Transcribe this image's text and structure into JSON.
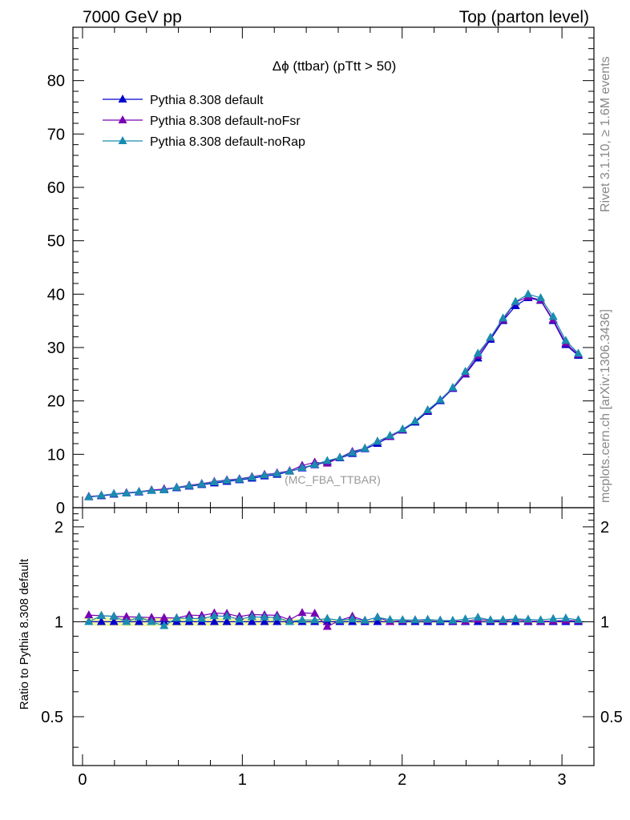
{
  "header": {
    "energy_label": "7000 GeV pp",
    "process_label": "Top (parton level)"
  },
  "side_labels": {
    "rivet": "Rivet 3.1.10, ≥ 1.6M events",
    "mcplots": "mcplots.cern.ch [arXiv:1306.3436]"
  },
  "chart_data": {
    "type": "line",
    "title": "Δϕ (ttbar) (pTtt > 50)",
    "analysis_tag": "(MC_FBA_TTBAR)",
    "colors": {
      "Pythia 8.308 default": "#0000cc",
      "Pythia 8.308 default-noFsr": "#7a00b4",
      "Pythia 8.308 default-noRap": "#1a8cb0",
      "band": "#f2f7a0"
    },
    "x": [
      0.0393,
      0.1178,
      0.1963,
      0.2749,
      0.3534,
      0.432,
      0.5105,
      0.589,
      0.6676,
      0.7461,
      0.8247,
      0.9032,
      0.9817,
      1.0603,
      1.1388,
      1.2174,
      1.2959,
      1.3744,
      1.453,
      1.5315,
      1.6101,
      1.6886,
      1.7671,
      1.8457,
      1.9242,
      2.0028,
      2.0813,
      2.1598,
      2.2384,
      2.3169,
      2.3955,
      2.474,
      2.5525,
      2.6311,
      2.7096,
      2.7882,
      2.8667,
      2.9452,
      3.0238,
      3.1023
    ],
    "series": [
      {
        "name": "Pythia 8.308 default",
        "values": [
          2.0,
          2.2,
          2.5,
          2.7,
          2.9,
          3.2,
          3.4,
          3.7,
          4.0,
          4.3,
          4.6,
          4.9,
          5.2,
          5.5,
          5.9,
          6.2,
          6.8,
          7.4,
          8.0,
          8.6,
          9.3,
          10.1,
          11.0,
          12.0,
          13.3,
          14.5,
          16.0,
          18.0,
          20.0,
          22.3,
          25.0,
          28.0,
          31.5,
          35.0,
          37.8,
          39.3,
          38.8,
          35.0,
          30.5,
          28.5
        ]
      },
      {
        "name": "Pythia 8.308 default-noFsr",
        "values": [
          2.1,
          2.3,
          2.6,
          2.8,
          3.0,
          3.3,
          3.5,
          3.8,
          4.2,
          4.5,
          4.9,
          5.2,
          5.4,
          5.8,
          6.2,
          6.5,
          6.9,
          7.9,
          8.5,
          8.3,
          9.4,
          10.5,
          11.1,
          12.4,
          13.3,
          14.6,
          16.2,
          18.2,
          20.2,
          22.4,
          25.1,
          28.5,
          31.8,
          35.2,
          38.5,
          39.5,
          38.9,
          35.2,
          30.8,
          28.7
        ]
      },
      {
        "name": "Pythia 8.308 default-noRap",
        "values": [
          2.0,
          2.3,
          2.6,
          2.7,
          3.0,
          3.2,
          3.3,
          3.8,
          4.1,
          4.4,
          4.8,
          5.1,
          5.3,
          5.7,
          6.1,
          6.4,
          6.8,
          7.5,
          8.1,
          8.8,
          9.4,
          10.3,
          11.1,
          12.4,
          13.5,
          14.7,
          16.2,
          18.3,
          20.2,
          22.5,
          25.5,
          28.9,
          31.9,
          35.5,
          38.6,
          40.0,
          39.3,
          35.8,
          31.3,
          28.9
        ]
      }
    ],
    "band_halfwidth": [
      0.03,
      0.03,
      0.03,
      0.03,
      0.03,
      0.03,
      0.03,
      0.03,
      0.028,
      0.028,
      0.028,
      0.026,
      0.026,
      0.025,
      0.025,
      0.024,
      0.022,
      0.02,
      0.02,
      0.018,
      0.017,
      0.016,
      0.015,
      0.014,
      0.013,
      0.012,
      0.012,
      0.011,
      0.01,
      0.01,
      0.009,
      0.009,
      0.008,
      0.008,
      0.008,
      0.008,
      0.008,
      0.008,
      0.009,
      0.009
    ],
    "xlim": [
      -0.06,
      3.2
    ],
    "ylim_main": [
      0,
      90
    ],
    "ylim_ratio": [
      0.35,
      2.3
    ],
    "main_yticks": [
      0,
      10,
      20,
      30,
      40,
      50,
      60,
      70,
      80
    ],
    "ratio_yticks": [
      0.5,
      1,
      2
    ],
    "xticks": [
      0,
      1,
      2,
      3
    ],
    "ratio_ylabel": "Ratio to Pythia 8.308 default",
    "legend_position": "top-left"
  }
}
